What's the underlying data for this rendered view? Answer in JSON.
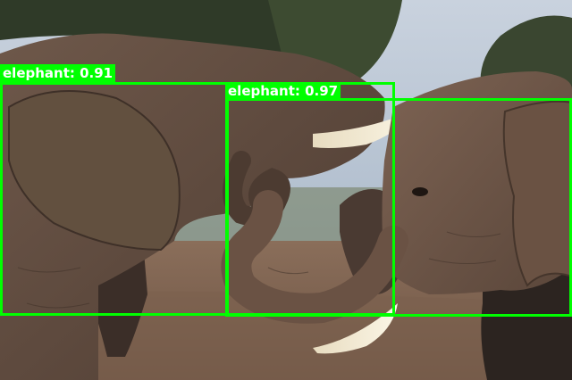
{
  "detections": [
    {
      "label": "elephant: 0.91",
      "class": "elephant",
      "score": 0.91
    },
    {
      "label": "elephant: 0.97",
      "class": "elephant",
      "score": 0.97
    }
  ],
  "colors": {
    "box": "#00ff00",
    "label_text": "#ffffff",
    "sky": "#b8c4d2",
    "foliage": "#3c4a32",
    "ground": "#7a5e4c",
    "elephant_skin": "#6b5446"
  }
}
